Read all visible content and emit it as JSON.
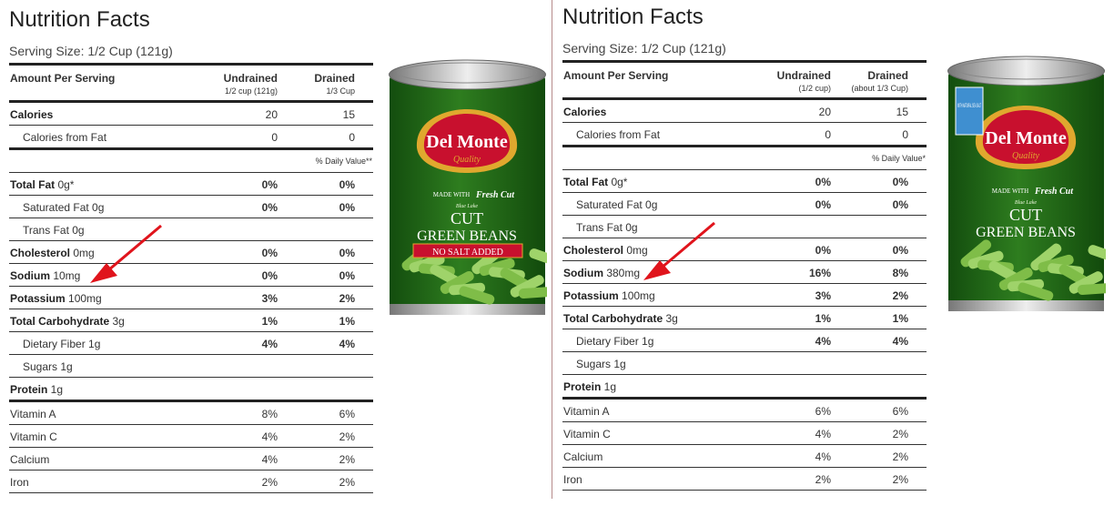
{
  "left_panel": {
    "title": "Nutrition Facts",
    "serving_size": "Serving Size: 1/2 Cup (121g)",
    "header": {
      "amount": "Amount Per Serving",
      "col1": "Undrained",
      "col1_sub": "1/2 cup (121g)",
      "col2": "Drained",
      "col2_sub": "1/3 Cup"
    },
    "rows": [
      {
        "label_bold": "Calories",
        "label": "",
        "v1": "20",
        "v2": "15"
      },
      {
        "label_bold": "",
        "label": "Calories from Fat",
        "v1": "0",
        "v2": "0"
      },
      {
        "dv_note": "% Daily Value**"
      },
      {
        "label_bold": "Total Fat",
        "label": " 0g*",
        "v1": "0%",
        "v2": "0%"
      },
      {
        "label_bold": "",
        "label": "Saturated Fat 0g",
        "v1": "0%",
        "v2": "0%"
      },
      {
        "label_bold": "",
        "label": "Trans Fat 0g",
        "v1": "",
        "v2": ""
      },
      {
        "label_bold": "Cholesterol",
        "label": " 0mg",
        "v1": "0%",
        "v2": "0%"
      },
      {
        "label_bold": "Sodium",
        "label": " 10mg",
        "v1": "0%",
        "v2": "0%"
      },
      {
        "label_bold": "Potassium",
        "label": " 100mg",
        "v1": "3%",
        "v2": "2%"
      },
      {
        "label_bold": "Total Carbohydrate",
        "label": " 3g",
        "v1": "1%",
        "v2": "1%"
      },
      {
        "label_bold": "",
        "label": "Dietary Fiber 1g",
        "v1": "4%",
        "v2": "4%"
      },
      {
        "label_bold": "",
        "label": "Sugars 1g",
        "v1": "",
        "v2": ""
      },
      {
        "label_bold": "Protein",
        "label": " 1g",
        "v1": "",
        "v2": ""
      },
      {
        "label_bold": "",
        "label": "Vitamin A",
        "v1": "8%",
        "v2": "6%"
      },
      {
        "label_bold": "",
        "label": "Vitamin C",
        "v1": "4%",
        "v2": "2%"
      },
      {
        "label_bold": "",
        "label": "Calcium",
        "v1": "4%",
        "v2": "2%"
      },
      {
        "label_bold": "",
        "label": "Iron",
        "v1": "2%",
        "v2": "2%"
      }
    ],
    "can": {
      "brand": "Del Monte",
      "quality": "Quality",
      "made_with": "MADE WITH",
      "fresh_cut": "Fresh Cut",
      "blue_lake": "Blue Lake",
      "product_line1": "CUT",
      "product_line2": "GREEN BEANS",
      "banner": "NO SALT ADDED"
    }
  },
  "right_panel": {
    "title": "Nutrition Facts",
    "serving_size": "Serving Size: 1/2 Cup (121g)",
    "header": {
      "amount": "Amount Per Serving",
      "col1": "Undrained",
      "col1_sub": "(1/2 cup)",
      "col2": "Drained",
      "col2_sub": "(about 1/3 Cup)"
    },
    "rows": [
      {
        "label_bold": "Calories",
        "label": "",
        "v1": "20",
        "v2": "15"
      },
      {
        "label_bold": "",
        "label": "Calories from Fat",
        "v1": "0",
        "v2": "0"
      },
      {
        "dv_note": "% Daily Value*"
      },
      {
        "label_bold": "Total Fat",
        "label": " 0g*",
        "v1": "0%",
        "v2": "0%"
      },
      {
        "label_bold": "",
        "label": "Saturated Fat 0g",
        "v1": "0%",
        "v2": "0%"
      },
      {
        "label_bold": "",
        "label": "Trans Fat 0g",
        "v1": "",
        "v2": ""
      },
      {
        "label_bold": "Cholesterol",
        "label": " 0mg",
        "v1": "0%",
        "v2": "0%"
      },
      {
        "label_bold": "Sodium",
        "label": " 380mg",
        "v1": "16%",
        "v2": "8%"
      },
      {
        "label_bold": "Potassium",
        "label": " 100mg",
        "v1": "3%",
        "v2": "2%"
      },
      {
        "label_bold": "Total Carbohydrate",
        "label": " 3g",
        "v1": "1%",
        "v2": "1%"
      },
      {
        "label_bold": "",
        "label": "Dietary Fiber 1g",
        "v1": "4%",
        "v2": "4%"
      },
      {
        "label_bold": "",
        "label": "Sugars 1g",
        "v1": "",
        "v2": ""
      },
      {
        "label_bold": "Protein",
        "label": " 1g",
        "v1": "",
        "v2": ""
      },
      {
        "label_bold": "",
        "label": "Vitamin A",
        "v1": "6%",
        "v2": "6%"
      },
      {
        "label_bold": "",
        "label": "Vitamin C",
        "v1": "4%",
        "v2": "2%"
      },
      {
        "label_bold": "",
        "label": "Calcium",
        "v1": "4%",
        "v2": "2%"
      },
      {
        "label_bold": "",
        "label": "Iron",
        "v1": "2%",
        "v2": "2%"
      }
    ],
    "can": {
      "brand": "Del Monte",
      "quality": "Quality",
      "made_with": "MADE WITH",
      "fresh_cut": "Fresh Cut",
      "blue_lake": "Blue Lake",
      "product_line1": "CUT",
      "product_line2": "GREEN BEANS",
      "badge": "WITH NATURAL SEA SALT"
    }
  },
  "colors": {
    "can_green": "#2e7d1f",
    "label_red": "#c8102e",
    "gold": "#e0a82e",
    "arrow_red": "#e0141c"
  }
}
